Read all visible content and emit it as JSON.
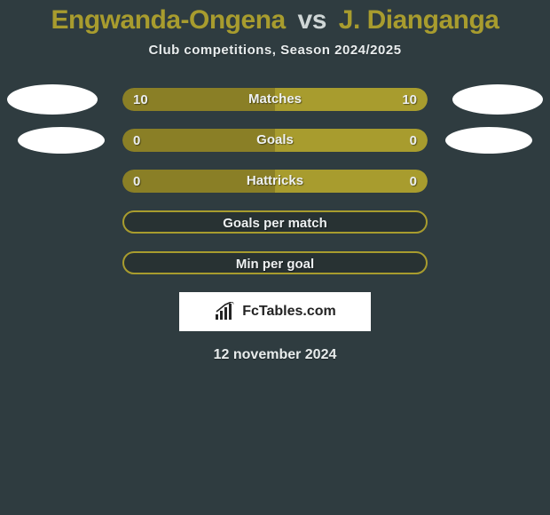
{
  "title": {
    "player1": "Engwanda-Ongena",
    "vs": "vs",
    "player2": "J. Dianganga"
  },
  "subtitle": "Club competitions, Season 2024/2025",
  "colors": {
    "background": "#2f3c40",
    "accent": "#a89c2e",
    "barFillDark": "#8a7f26",
    "avatar": "#ffffff",
    "text": "#e9edee",
    "bordered_bg": "#283233"
  },
  "stats": [
    {
      "label": "Matches",
      "left_value": "10",
      "right_value": "10",
      "left_pct": 50,
      "right_pct": 50,
      "left_color": "#8a7f26",
      "right_color": "#a89c2e",
      "avatars": "large",
      "bordered": false
    },
    {
      "label": "Goals",
      "left_value": "0",
      "right_value": "0",
      "left_pct": 50,
      "right_pct": 50,
      "left_color": "#8a7f26",
      "right_color": "#a89c2e",
      "avatars": "small",
      "bordered": false
    },
    {
      "label": "Hattricks",
      "left_value": "0",
      "right_value": "0",
      "left_pct": 50,
      "right_pct": 50,
      "left_color": "#8a7f26",
      "right_color": "#a89c2e",
      "avatars": "none",
      "bordered": false
    },
    {
      "label": "Goals per match",
      "left_value": "",
      "right_value": "",
      "left_pct": 0,
      "right_pct": 0,
      "left_color": "",
      "right_color": "",
      "avatars": "none",
      "bordered": true
    },
    {
      "label": "Min per goal",
      "left_value": "",
      "right_value": "",
      "left_pct": 0,
      "right_pct": 0,
      "left_color": "",
      "right_color": "",
      "avatars": "none",
      "bordered": true
    }
  ],
  "attribution": "FcTables.com",
  "date": "12 november 2024",
  "typography": {
    "title_fontsize": 30,
    "subtitle_fontsize": 15,
    "stat_fontsize": 15,
    "date_fontsize": 16
  }
}
